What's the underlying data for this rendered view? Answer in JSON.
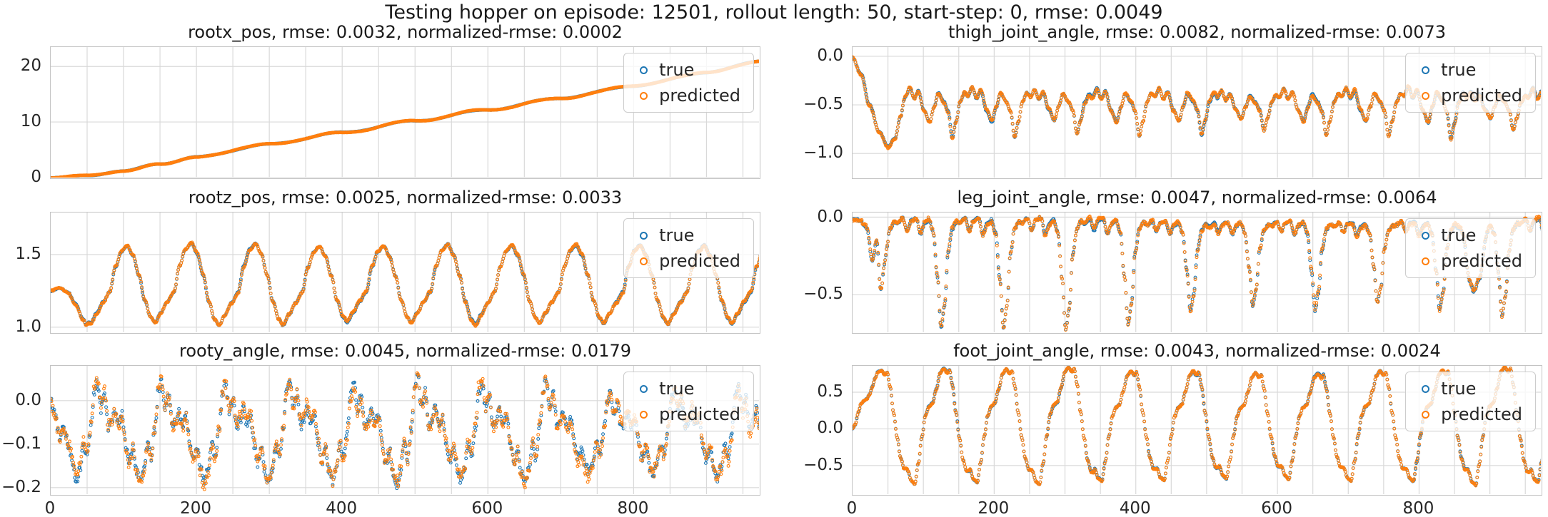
{
  "figure": {
    "title": "Testing hopper on episode: 12501, rollout length: 50, start-step: 0, rmse: 0.0049",
    "background": "#ffffff",
    "text_color": "#262626",
    "grid_color": "#d9d9d9",
    "spine_color": "#c3c3c3",
    "legend_labels": [
      "true",
      "predicted"
    ],
    "series_colors": {
      "true": "#1f77b4",
      "predicted": "#ff7f0e"
    }
  },
  "chart_data": [
    {
      "type": "scatter",
      "title": "rootx_pos, rmse: 0.0032, normalized-rmse: 0.0002",
      "legend_position": "upper right",
      "grid": true,
      "x_range": [
        0,
        975
      ],
      "grid_x_step": 50,
      "ylim": [
        -0.4,
        23.5
      ],
      "yticks": [
        {
          "label": "0",
          "value": 0
        },
        {
          "label": "10",
          "value": 10
        },
        {
          "label": "20",
          "value": 20
        }
      ],
      "xticks": [
        {
          "label": "0",
          "value": 0
        },
        {
          "label": "200",
          "value": 200
        },
        {
          "label": "400",
          "value": 400
        },
        {
          "label": "600",
          "value": 600
        },
        {
          "label": "800",
          "value": 800
        }
      ],
      "show_xtick_labels": false,
      "series": [
        {
          "name": "true",
          "color": "#1f77b4"
        },
        {
          "name": "predicted",
          "color": "#ff7f0e"
        }
      ],
      "waveform": {
        "type": "trend",
        "keypoints": [
          [
            0,
            0.0
          ],
          [
            50,
            0.3
          ],
          [
            100,
            1.2
          ],
          [
            150,
            2.4
          ],
          [
            200,
            3.7
          ],
          [
            300,
            6.0
          ],
          [
            400,
            8.1
          ],
          [
            500,
            10.2
          ],
          [
            600,
            12.2
          ],
          [
            700,
            14.3
          ],
          [
            800,
            16.5
          ],
          [
            900,
            18.9
          ],
          [
            975,
            21.0
          ]
        ],
        "ripple_amp": 0.07,
        "ripple_period": 88,
        "noise": 0.012,
        "pred_dev": 0.05,
        "seed": 11
      }
    },
    {
      "type": "scatter",
      "title": "thigh_joint_angle, rmse: 0.0082, normalized-rmse: 0.0073",
      "legend_position": "upper right",
      "grid": true,
      "x_range": [
        0,
        975
      ],
      "grid_x_step": 50,
      "ylim": [
        -1.27,
        0.095
      ],
      "yticks": [
        {
          "label": "0.0",
          "value": 0.0
        },
        {
          "label": "−0.5",
          "value": -0.5
        },
        {
          "label": "−1.0",
          "value": -1.0
        }
      ],
      "xticks": [
        {
          "label": "0",
          "value": 0
        },
        {
          "label": "200",
          "value": 200
        },
        {
          "label": "400",
          "value": 400
        },
        {
          "label": "600",
          "value": 600
        },
        {
          "label": "800",
          "value": 800
        }
      ],
      "show_xtick_labels": false,
      "series": [
        {
          "name": "true",
          "color": "#1f77b4"
        },
        {
          "name": "predicted",
          "color": "#ff7f0e"
        }
      ],
      "waveform": {
        "type": "cycle",
        "period": 88,
        "mean": -0.5,
        "phase_offset": 13,
        "cycle": [
          [
            0,
            -0.42
          ],
          [
            6,
            -0.34
          ],
          [
            12,
            -0.44
          ],
          [
            18,
            -0.37
          ],
          [
            26,
            -0.55
          ],
          [
            34,
            -0.66
          ],
          [
            40,
            -0.52
          ],
          [
            46,
            -0.39
          ],
          [
            54,
            -0.47
          ],
          [
            60,
            -0.56
          ],
          [
            66,
            -0.8
          ],
          [
            71,
            -0.66
          ],
          [
            77,
            -0.47
          ],
          [
            83,
            -0.39
          ],
          [
            88,
            -0.42
          ]
        ],
        "transient": [
          [
            0,
            -0.02
          ],
          [
            12,
            -0.18
          ],
          [
            24,
            -0.5
          ],
          [
            38,
            -0.78
          ],
          [
            50,
            -0.93
          ],
          [
            60,
            -0.84
          ],
          [
            68,
            -0.62
          ],
          [
            75,
            -0.47
          ]
        ],
        "transient_end": 75,
        "amp_jitter": 0.3,
        "noise": 0.006,
        "pred_dev": 0.015,
        "seed": 22
      }
    },
    {
      "type": "scatter",
      "title": "rootz_pos, rmse: 0.0025, normalized-rmse: 0.0033",
      "legend_position": "upper right",
      "grid": true,
      "x_range": [
        0,
        975
      ],
      "grid_x_step": 50,
      "ylim": [
        0.95,
        1.79
      ],
      "yticks": [
        {
          "label": "1.5",
          "value": 1.5
        },
        {
          "label": "1.0",
          "value": 1.0
        }
      ],
      "xticks": [
        {
          "label": "0",
          "value": 0
        },
        {
          "label": "200",
          "value": 200
        },
        {
          "label": "400",
          "value": 400
        },
        {
          "label": "600",
          "value": 600
        },
        {
          "label": "800",
          "value": 800
        }
      ],
      "show_xtick_labels": false,
      "series": [
        {
          "name": "true",
          "color": "#1f77b4"
        },
        {
          "name": "predicted",
          "color": "#ff7f0e"
        }
      ],
      "waveform": {
        "type": "cycle",
        "period": 88,
        "mean": 1.3,
        "phase_offset": 7,
        "cycle": [
          [
            0,
            1.24
          ],
          [
            8,
            1.42
          ],
          [
            16,
            1.53
          ],
          [
            24,
            1.57
          ],
          [
            32,
            1.5
          ],
          [
            40,
            1.36
          ],
          [
            48,
            1.18
          ],
          [
            56,
            1.06
          ],
          [
            62,
            1.02
          ],
          [
            70,
            1.09
          ],
          [
            79,
            1.17
          ],
          [
            88,
            1.24
          ]
        ],
        "transient": [
          [
            0,
            1.25
          ],
          [
            12,
            1.27
          ],
          [
            24,
            1.24
          ],
          [
            34,
            1.16
          ],
          [
            44,
            1.06
          ],
          [
            50,
            1.01
          ],
          [
            55,
            1.03
          ]
        ],
        "transient_end": 55,
        "amp_jitter": 0.12,
        "noise": 0.004,
        "pred_dev": 0.008,
        "seed": 33
      }
    },
    {
      "type": "scatter",
      "title": "leg_joint_angle, rmse: 0.0047, normalized-rmse: 0.0064",
      "legend_position": "upper right",
      "grid": true,
      "x_range": [
        0,
        975
      ],
      "grid_x_step": 50,
      "ylim": [
        -0.755,
        0.03
      ],
      "yticks": [
        {
          "label": "0.0",
          "value": 0.0
        },
        {
          "label": "−0.5",
          "value": -0.5
        }
      ],
      "xticks": [
        {
          "label": "0",
          "value": 0
        },
        {
          "label": "200",
          "value": 200
        },
        {
          "label": "400",
          "value": 400
        },
        {
          "label": "600",
          "value": 600
        },
        {
          "label": "800",
          "value": 800
        }
      ],
      "show_xtick_labels": false,
      "series": [
        {
          "name": "true",
          "color": "#1f77b4"
        },
        {
          "name": "predicted",
          "color": "#ff7f0e"
        }
      ],
      "waveform": {
        "type": "cycle",
        "period": 88,
        "mean": -0.12,
        "phase_offset": 25,
        "cycle": [
          [
            0,
            -0.05
          ],
          [
            8,
            -0.02
          ],
          [
            14,
            -0.09
          ],
          [
            20,
            -0.03
          ],
          [
            27,
            -0.02
          ],
          [
            33,
            -0.11
          ],
          [
            39,
            -0.05
          ],
          [
            45,
            -0.03
          ],
          [
            51,
            -0.1
          ],
          [
            57,
            -0.36
          ],
          [
            62,
            -0.64
          ],
          [
            67,
            -0.52
          ],
          [
            72,
            -0.22
          ],
          [
            78,
            -0.08
          ],
          [
            84,
            -0.04
          ],
          [
            88,
            -0.05
          ]
        ],
        "transient": [
          [
            0,
            -0.01
          ],
          [
            10,
            -0.02
          ],
          [
            20,
            -0.07
          ],
          [
            28,
            -0.28
          ],
          [
            34,
            -0.16
          ],
          [
            40,
            -0.47
          ],
          [
            46,
            -0.28
          ],
          [
            50,
            -0.1
          ]
        ],
        "transient_end": 50,
        "events": [
          {
            "t": 878,
            "width": 9,
            "depth": -0.45
          }
        ],
        "amp_jitter": 0.35,
        "noise": 0.007,
        "pred_dev": 0.012,
        "seed": 44
      }
    },
    {
      "type": "scatter",
      "title": "rooty_angle, rmse: 0.0045, normalized-rmse: 0.0179",
      "legend_position": "upper right",
      "grid": true,
      "x_range": [
        0,
        975
      ],
      "grid_x_step": 50,
      "ylim": [
        -0.22,
        0.08
      ],
      "yticks": [
        {
          "label": "0.0",
          "value": 0.0
        },
        {
          "label": "−0.1",
          "value": -0.1
        },
        {
          "label": "−0.2",
          "value": -0.2
        }
      ],
      "xticks": [
        {
          "label": "0",
          "value": 0
        },
        {
          "label": "200",
          "value": 200
        },
        {
          "label": "400",
          "value": 400
        },
        {
          "label": "600",
          "value": 600
        },
        {
          "label": "800",
          "value": 800
        }
      ],
      "show_xtick_labels": true,
      "series": [
        {
          "name": "true",
          "color": "#1f77b4"
        },
        {
          "name": "predicted",
          "color": "#ff7f0e"
        }
      ],
      "waveform": {
        "type": "cycle",
        "period": 88,
        "mean": -0.085,
        "phase_offset": 0,
        "cycle": [
          [
            0,
            -0.02
          ],
          [
            5,
            -0.055
          ],
          [
            10,
            -0.035
          ],
          [
            15,
            -0.1
          ],
          [
            20,
            -0.14
          ],
          [
            25,
            -0.11
          ],
          [
            30,
            -0.16
          ],
          [
            35,
            -0.185
          ],
          [
            40,
            -0.155
          ],
          [
            45,
            -0.1
          ],
          [
            50,
            -0.13
          ],
          [
            55,
            -0.065
          ],
          [
            60,
            0.02
          ],
          [
            64,
            0.04
          ],
          [
            69,
            -0.02
          ],
          [
            74,
            0.01
          ],
          [
            79,
            -0.06
          ],
          [
            84,
            -0.045
          ],
          [
            88,
            -0.02
          ]
        ],
        "transient": [
          [
            0,
            0.0
          ],
          [
            6,
            -0.03
          ],
          [
            12,
            -0.085
          ],
          [
            18,
            -0.06
          ],
          [
            24,
            -0.1
          ],
          [
            30,
            -0.135
          ],
          [
            35,
            -0.165
          ]
        ],
        "transient_end": 35,
        "amp_jitter": 0.35,
        "noise": 0.01,
        "pred_dev": 0.012,
        "seed": 55
      }
    },
    {
      "type": "scatter",
      "title": "foot_joint_angle, rmse: 0.0043, normalized-rmse: 0.0024",
      "legend_position": "upper right",
      "grid": true,
      "x_range": [
        0,
        975
      ],
      "grid_x_step": 50,
      "ylim": [
        -0.92,
        0.86
      ],
      "yticks": [
        {
          "label": "0.5",
          "value": 0.5
        },
        {
          "label": "0.0",
          "value": 0.0
        },
        {
          "label": "−0.5",
          "value": -0.5
        }
      ],
      "xticks": [
        {
          "label": "0",
          "value": 0
        },
        {
          "label": "200",
          "value": 200
        },
        {
          "label": "400",
          "value": 400
        },
        {
          "label": "600",
          "value": 600
        },
        {
          "label": "800",
          "value": 800
        }
      ],
      "show_xtick_labels": true,
      "series": [
        {
          "name": "true",
          "color": "#1f77b4"
        },
        {
          "name": "predicted",
          "color": "#ff7f0e"
        }
      ],
      "waveform": {
        "type": "cycle",
        "period": 88,
        "mean": 0.05,
        "phase_offset": 10,
        "cycle": [
          [
            0,
            -0.55
          ],
          [
            5,
            -0.68
          ],
          [
            10,
            -0.72
          ],
          [
            15,
            -0.45
          ],
          [
            20,
            -0.1
          ],
          [
            25,
            0.18
          ],
          [
            30,
            0.3
          ],
          [
            35,
            0.34
          ],
          [
            40,
            0.52
          ],
          [
            46,
            0.74
          ],
          [
            51,
            0.8
          ],
          [
            56,
            0.74
          ],
          [
            59,
            0.78
          ],
          [
            63,
            0.58
          ],
          [
            68,
            0.22
          ],
          [
            73,
            -0.12
          ],
          [
            78,
            -0.4
          ],
          [
            83,
            -0.55
          ],
          [
            88,
            -0.55
          ]
        ],
        "transient": [
          [
            0,
            0.0
          ],
          [
            4,
            0.06
          ],
          [
            8,
            0.22
          ],
          [
            12,
            0.34
          ],
          [
            16,
            0.38
          ],
          [
            20,
            0.41
          ],
          [
            24,
            0.47
          ],
          [
            28,
            0.58
          ],
          [
            32,
            0.7
          ],
          [
            36,
            0.78
          ],
          [
            41,
            0.8
          ],
          [
            45,
            0.75
          ]
        ],
        "transient_end": 45,
        "amp_jitter": 0.12,
        "noise": 0.006,
        "pred_dev": 0.012,
        "seed": 66
      }
    }
  ]
}
